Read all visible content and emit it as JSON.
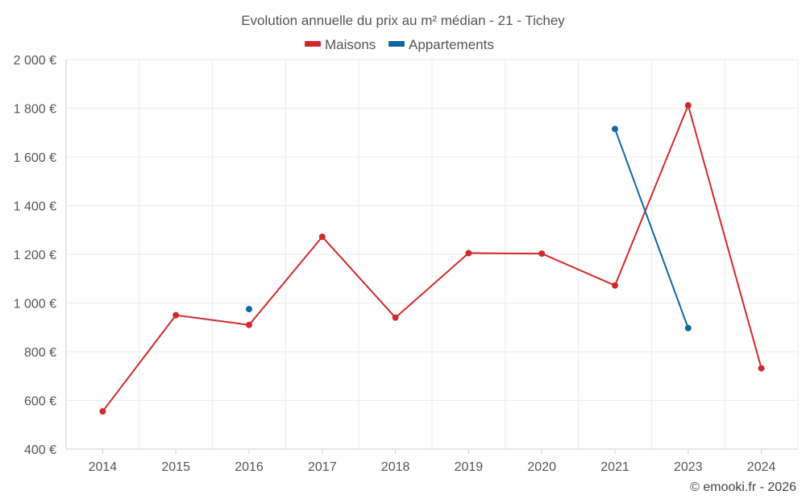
{
  "chart_data": {
    "type": "line",
    "title": "Evolution annuelle du prix au m² médian - 21 - Tichey",
    "categories": [
      "2014",
      "2015",
      "2016",
      "2017",
      "2018",
      "2019",
      "2020",
      "2021",
      "2023",
      "2024"
    ],
    "series": [
      {
        "name": "Maisons",
        "color": "#d12a2a",
        "values": [
          555,
          950,
          910,
          1272,
          940,
          1205,
          1203,
          1072,
          1812,
          732
        ]
      },
      {
        "name": "Appartements",
        "color": "#0e67a0",
        "values": [
          null,
          null,
          975,
          null,
          null,
          null,
          null,
          1715,
          897,
          null
        ]
      }
    ],
    "ylim": [
      400,
      2000
    ],
    "yticks": [
      400,
      600,
      800,
      1000,
      1200,
      1400,
      1600,
      1800,
      2000
    ],
    "ytick_labels": [
      "400 €",
      "600 €",
      "800 €",
      "1 000 €",
      "1 200 €",
      "1 400 €",
      "1 600 €",
      "1 800 €",
      "2 000 €"
    ],
    "xlabel": "",
    "ylabel": "",
    "grid": true,
    "legend_position": "top-center"
  },
  "credit": "© emooki.fr - 2026"
}
